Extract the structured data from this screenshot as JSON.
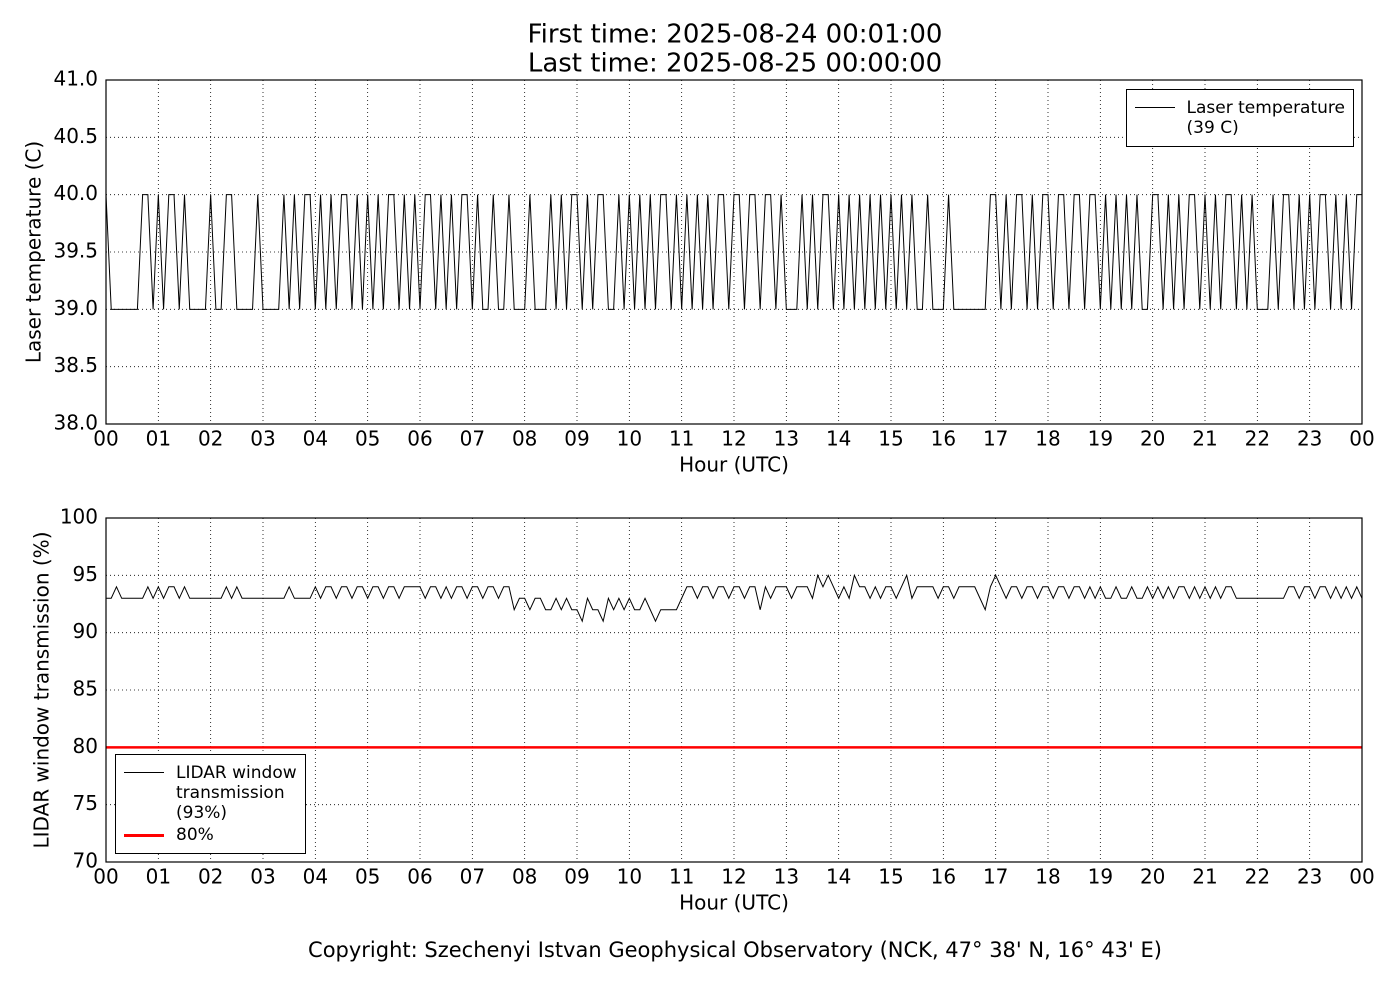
{
  "chart_data": [
    {
      "type": "line",
      "title": "First time: 2025-08-24 00:01:00",
      "subtitle": "Last time: 2025-08-25 00:00:00",
      "x_label": "Hour (UTC)",
      "y_label": "Laser temperature (C)",
      "xlim": [
        0,
        24
      ],
      "ylim": [
        38,
        41
      ],
      "xticks": [
        {
          "value": 0,
          "label": "00"
        },
        {
          "value": 1,
          "label": "01"
        },
        {
          "value": 2,
          "label": "02"
        },
        {
          "value": 3,
          "label": "03"
        },
        {
          "value": 4,
          "label": "04"
        },
        {
          "value": 5,
          "label": "05"
        },
        {
          "value": 6,
          "label": "06"
        },
        {
          "value": 7,
          "label": "07"
        },
        {
          "value": 8,
          "label": "08"
        },
        {
          "value": 9,
          "label": "09"
        },
        {
          "value": 10,
          "label": "10"
        },
        {
          "value": 11,
          "label": "11"
        },
        {
          "value": 12,
          "label": "12"
        },
        {
          "value": 13,
          "label": "13"
        },
        {
          "value": 14,
          "label": "14"
        },
        {
          "value": 15,
          "label": "15"
        },
        {
          "value": 16,
          "label": "16"
        },
        {
          "value": 17,
          "label": "17"
        },
        {
          "value": 18,
          "label": "18"
        },
        {
          "value": 19,
          "label": "19"
        },
        {
          "value": 20,
          "label": "20"
        },
        {
          "value": 21,
          "label": "21"
        },
        {
          "value": 22,
          "label": "22"
        },
        {
          "value": 23,
          "label": "23"
        },
        {
          "value": 24,
          "label": "00"
        }
      ],
      "yticks": [
        {
          "value": 38,
          "label": "38.0"
        },
        38.5,
        {
          "value": 39,
          "label": "39.0"
        },
        39.5,
        {
          "value": 40,
          "label": "40.0"
        },
        40.5,
        {
          "value": 41,
          "label": "41.0"
        }
      ],
      "grid": true,
      "legend": "upper right",
      "x": [
        0,
        0.1,
        0.2,
        0.3,
        0.4,
        0.5,
        0.6,
        0.7,
        0.8,
        0.9,
        1,
        1.1,
        1.2,
        1.3,
        1.4,
        1.5,
        1.6,
        1.7,
        1.8,
        1.9,
        2,
        2.1,
        2.2,
        2.3,
        2.4,
        2.5,
        2.6,
        2.7,
        2.8,
        2.9,
        3,
        3.1,
        3.2,
        3.3,
        3.4,
        3.5,
        3.6,
        3.7,
        3.8,
        3.9,
        4,
        4.1,
        4.2,
        4.3,
        4.4,
        4.5,
        4.6,
        4.7,
        4.8,
        4.9,
        5,
        5.1,
        5.2,
        5.3,
        5.4,
        5.5,
        5.6,
        5.7,
        5.8,
        5.9,
        6,
        6.1,
        6.2,
        6.3,
        6.4,
        6.5,
        6.6,
        6.7,
        6.8,
        6.9,
        7,
        7.1,
        7.2,
        7.3,
        7.4,
        7.5,
        7.6,
        7.7,
        7.8,
        7.9,
        8,
        8.1,
        8.2,
        8.3,
        8.4,
        8.5,
        8.6,
        8.7,
        8.8,
        8.9,
        9,
        9.1,
        9.2,
        9.3,
        9.4,
        9.5,
        9.6,
        9.7,
        9.8,
        9.9,
        10,
        10.1,
        10.2,
        10.3,
        10.4,
        10.5,
        10.6,
        10.7,
        10.8,
        10.9,
        11,
        11.1,
        11.2,
        11.3,
        11.4,
        11.5,
        11.6,
        11.7,
        11.8,
        11.9,
        12,
        12.1,
        12.2,
        12.3,
        12.4,
        12.5,
        12.6,
        12.7,
        12.8,
        12.9,
        13,
        13.1,
        13.2,
        13.3,
        13.4,
        13.5,
        13.6,
        13.7,
        13.8,
        13.9,
        14,
        14.1,
        14.2,
        14.3,
        14.4,
        14.5,
        14.6,
        14.7,
        14.8,
        14.9,
        15,
        15.1,
        15.2,
        15.3,
        15.4,
        15.5,
        15.6,
        15.7,
        15.8,
        15.9,
        16,
        16.1,
        16.2,
        16.3,
        16.4,
        16.5,
        16.6,
        16.7,
        16.8,
        16.9,
        17,
        17.1,
        17.2,
        17.3,
        17.4,
        17.5,
        17.6,
        17.7,
        17.8,
        17.9,
        18,
        18.1,
        18.2,
        18.3,
        18.4,
        18.5,
        18.6,
        18.7,
        18.8,
        18.9,
        19,
        19.1,
        19.2,
        19.3,
        19.4,
        19.5,
        19.6,
        19.7,
        19.8,
        19.9,
        20,
        20.1,
        20.2,
        20.3,
        20.4,
        20.5,
        20.6,
        20.7,
        20.8,
        20.9,
        21,
        21.1,
        21.2,
        21.3,
        21.4,
        21.5,
        21.6,
        21.7,
        21.8,
        21.9,
        22,
        22.1,
        22.2,
        22.3,
        22.4,
        22.5,
        22.6,
        22.7,
        22.8,
        22.9,
        23,
        23.1,
        23.2,
        23.3,
        23.4,
        23.5,
        23.6,
        23.7,
        23.8,
        23.9,
        24
      ],
      "series": [
        {
          "name": "Laser temperature\n(39 C)",
          "color": "#000000",
          "values": [
            40,
            39,
            39,
            39,
            39,
            39,
            39,
            40,
            40,
            39,
            40,
            39,
            40,
            40,
            39,
            40,
            39,
            39,
            39,
            39,
            40,
            39,
            39,
            40,
            40,
            39,
            39,
            39,
            39,
            40,
            39,
            39,
            39,
            39,
            40,
            39,
            40,
            39,
            40,
            40,
            39,
            40,
            39,
            40,
            39,
            40,
            40,
            39,
            40,
            39,
            40,
            39,
            40,
            39,
            40,
            40,
            39,
            40,
            39,
            40,
            39,
            40,
            40,
            39,
            40,
            39,
            40,
            39,
            40,
            40,
            39,
            40,
            39,
            39,
            40,
            39,
            39,
            40,
            39,
            39,
            39,
            40,
            39,
            39,
            39,
            40,
            39,
            40,
            39,
            40,
            40,
            39,
            40,
            39,
            40,
            40,
            39,
            39,
            40,
            39,
            40,
            39,
            40,
            39,
            40,
            39,
            40,
            40,
            39,
            40,
            39,
            40,
            39,
            40,
            39,
            40,
            39,
            40,
            40,
            39,
            40,
            40,
            39,
            40,
            40,
            39,
            40,
            40,
            39,
            40,
            39,
            39,
            39,
            40,
            39,
            40,
            39,
            40,
            40,
            39,
            40,
            39,
            40,
            39,
            40,
            39,
            40,
            39,
            40,
            39,
            40,
            39,
            40,
            39,
            40,
            39,
            39,
            40,
            39,
            39,
            39,
            40,
            39,
            39,
            39,
            39,
            39,
            39,
            39,
            40,
            40,
            39,
            40,
            39,
            40,
            40,
            39,
            40,
            39,
            40,
            40,
            39,
            40,
            40,
            39,
            40,
            40,
            39,
            40,
            40,
            39,
            40,
            39,
            40,
            39,
            40,
            39,
            40,
            39,
            39,
            40,
            40,
            39,
            40,
            39,
            40,
            39,
            40,
            40,
            39,
            40,
            39,
            40,
            39,
            40,
            40,
            39,
            40,
            39,
            40,
            39,
            39,
            39,
            40,
            39,
            40,
            40,
            39,
            40,
            39,
            40,
            39,
            40,
            40,
            39,
            40,
            39,
            40,
            39,
            40,
            40
          ]
        }
      ]
    },
    {
      "type": "line",
      "x_label": "Hour (UTC)",
      "y_label": "LIDAR window transmission (%)",
      "xlim": [
        0,
        24
      ],
      "ylim": [
        70,
        100
      ],
      "xticks": [
        {
          "value": 0,
          "label": "00"
        },
        {
          "value": 1,
          "label": "01"
        },
        {
          "value": 2,
          "label": "02"
        },
        {
          "value": 3,
          "label": "03"
        },
        {
          "value": 4,
          "label": "04"
        },
        {
          "value": 5,
          "label": "05"
        },
        {
          "value": 6,
          "label": "06"
        },
        {
          "value": 7,
          "label": "07"
        },
        {
          "value": 8,
          "label": "08"
        },
        {
          "value": 9,
          "label": "09"
        },
        {
          "value": 10,
          "label": "10"
        },
        {
          "value": 11,
          "label": "11"
        },
        {
          "value": 12,
          "label": "12"
        },
        {
          "value": 13,
          "label": "13"
        },
        {
          "value": 14,
          "label": "14"
        },
        {
          "value": 15,
          "label": "15"
        },
        {
          "value": 16,
          "label": "16"
        },
        {
          "value": 17,
          "label": "17"
        },
        {
          "value": 18,
          "label": "18"
        },
        {
          "value": 19,
          "label": "19"
        },
        {
          "value": 20,
          "label": "20"
        },
        {
          "value": 21,
          "label": "21"
        },
        {
          "value": 22,
          "label": "22"
        },
        {
          "value": 23,
          "label": "23"
        },
        {
          "value": 24,
          "label": "00"
        }
      ],
      "yticks": [
        70,
        75,
        80,
        85,
        90,
        95,
        100
      ],
      "grid": true,
      "legend": "lower left",
      "x": [
        0,
        0.1,
        0.2,
        0.3,
        0.4,
        0.5,
        0.6,
        0.7,
        0.8,
        0.9,
        1,
        1.1,
        1.2,
        1.3,
        1.4,
        1.5,
        1.6,
        1.7,
        1.8,
        1.9,
        2,
        2.1,
        2.2,
        2.3,
        2.4,
        2.5,
        2.6,
        2.7,
        2.8,
        2.9,
        3,
        3.1,
        3.2,
        3.3,
        3.4,
        3.5,
        3.6,
        3.7,
        3.8,
        3.9,
        4,
        4.1,
        4.2,
        4.3,
        4.4,
        4.5,
        4.6,
        4.7,
        4.8,
        4.9,
        5,
        5.1,
        5.2,
        5.3,
        5.4,
        5.5,
        5.6,
        5.7,
        5.8,
        5.9,
        6,
        6.1,
        6.2,
        6.3,
        6.4,
        6.5,
        6.6,
        6.7,
        6.8,
        6.9,
        7,
        7.1,
        7.2,
        7.3,
        7.4,
        7.5,
        7.6,
        7.7,
        7.8,
        7.9,
        8,
        8.1,
        8.2,
        8.3,
        8.4,
        8.5,
        8.6,
        8.7,
        8.8,
        8.9,
        9,
        9.1,
        9.2,
        9.3,
        9.4,
        9.5,
        9.6,
        9.7,
        9.8,
        9.9,
        10,
        10.1,
        10.2,
        10.3,
        10.4,
        10.5,
        10.6,
        10.7,
        10.8,
        10.9,
        11,
        11.1,
        11.2,
        11.3,
        11.4,
        11.5,
        11.6,
        11.7,
        11.8,
        11.9,
        12,
        12.1,
        12.2,
        12.3,
        12.4,
        12.5,
        12.6,
        12.7,
        12.8,
        12.9,
        13,
        13.1,
        13.2,
        13.3,
        13.4,
        13.5,
        13.6,
        13.7,
        13.8,
        13.9,
        14,
        14.1,
        14.2,
        14.3,
        14.4,
        14.5,
        14.6,
        14.7,
        14.8,
        14.9,
        15,
        15.1,
        15.2,
        15.3,
        15.4,
        15.5,
        15.6,
        15.7,
        15.8,
        15.9,
        16,
        16.1,
        16.2,
        16.3,
        16.4,
        16.5,
        16.6,
        16.7,
        16.8,
        16.9,
        17,
        17.1,
        17.2,
        17.3,
        17.4,
        17.5,
        17.6,
        17.7,
        17.8,
        17.9,
        18,
        18.1,
        18.2,
        18.3,
        18.4,
        18.5,
        18.6,
        18.7,
        18.8,
        18.9,
        19,
        19.1,
        19.2,
        19.3,
        19.4,
        19.5,
        19.6,
        19.7,
        19.8,
        19.9,
        20,
        20.1,
        20.2,
        20.3,
        20.4,
        20.5,
        20.6,
        20.7,
        20.8,
        20.9,
        21,
        21.1,
        21.2,
        21.3,
        21.4,
        21.5,
        21.6,
        21.7,
        21.8,
        21.9,
        22,
        22.1,
        22.2,
        22.3,
        22.4,
        22.5,
        22.6,
        22.7,
        22.8,
        22.9,
        23,
        23.1,
        23.2,
        23.3,
        23.4,
        23.5,
        23.6,
        23.7,
        23.8,
        23.9,
        24
      ],
      "series": [
        {
          "name": "LIDAR window\ntransmission\n(93%)",
          "color": "#000000",
          "values": [
            93,
            93,
            94,
            93,
            93,
            93,
            93,
            93,
            94,
            93,
            94,
            93,
            94,
            94,
            93,
            94,
            93,
            93,
            93,
            93,
            93,
            93,
            93,
            94,
            93,
            94,
            93,
            93,
            93,
            93,
            93,
            93,
            93,
            93,
            93,
            94,
            93,
            93,
            93,
            93,
            94,
            93,
            94,
            94,
            93,
            94,
            94,
            93,
            94,
            94,
            93,
            94,
            94,
            93,
            94,
            94,
            93,
            94,
            94,
            94,
            94,
            93,
            94,
            94,
            93,
            94,
            93,
            94,
            94,
            93,
            94,
            94,
            93,
            94,
            94,
            93,
            94,
            94,
            92,
            93,
            93,
            92,
            93,
            93,
            92,
            92,
            93,
            92,
            93,
            92,
            92,
            91,
            93,
            92,
            92,
            91,
            93,
            92,
            93,
            92,
            93,
            92,
            92,
            93,
            92,
            91,
            92,
            92,
            92,
            92,
            93,
            94,
            94,
            93,
            94,
            94,
            93,
            94,
            94,
            93,
            94,
            94,
            93,
            94,
            94,
            92,
            94,
            93,
            94,
            94,
            94,
            93,
            94,
            94,
            94,
            93,
            95,
            94,
            95,
            94,
            93,
            94,
            93,
            95,
            94,
            94,
            93,
            94,
            93,
            94,
            94,
            93,
            94,
            95,
            93,
            94,
            94,
            94,
            94,
            93,
            94,
            94,
            93,
            94,
            94,
            94,
            94,
            93,
            92,
            94,
            95,
            94,
            93,
            94,
            94,
            93,
            94,
            94,
            93,
            94,
            94,
            93,
            94,
            94,
            93,
            94,
            94,
            93,
            94,
            93,
            94,
            93,
            93,
            94,
            93,
            93,
            94,
            93,
            93,
            94,
            93,
            94,
            93,
            94,
            93,
            94,
            94,
            93,
            94,
            93,
            94,
            93,
            94,
            93,
            94,
            94,
            93,
            93,
            93,
            93,
            93,
            93,
            93,
            93,
            93,
            93,
            94,
            94,
            93,
            94,
            94,
            93,
            94,
            94,
            93,
            94,
            93,
            94,
            93,
            94,
            93
          ]
        }
      ],
      "reference_lines": [
        {
          "value": 80,
          "label": "80%",
          "color": "#ff0000"
        }
      ]
    }
  ],
  "footer": "Copyright: Szechenyi Istvan Geophysical Observatory (NCK, 47° 38' N, 16° 43' E)"
}
